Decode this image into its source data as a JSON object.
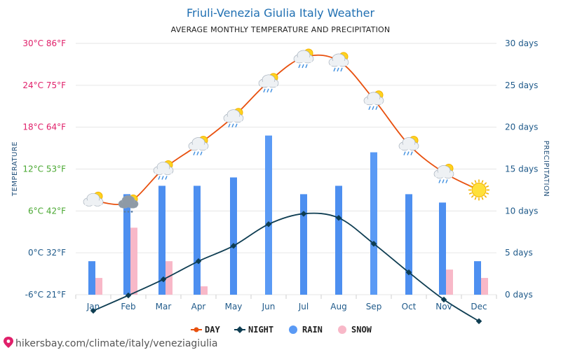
{
  "header": {
    "title": "Friuli-Venezia Giulia Italy Weather",
    "subtitle": "AVERAGE MONTHLY TEMPERATURE AND PRECIPITATION"
  },
  "axes": {
    "left_label": "TEMPERATURE",
    "right_label": "PRECIPITATION",
    "left_ticks": [
      {
        "text": "30°C 86°F",
        "value": 30,
        "color": "#e0206a"
      },
      {
        "text": "24°C 75°F",
        "value": 24,
        "color": "#e0206a"
      },
      {
        "text": "18°C 64°F",
        "value": 18,
        "color": "#e0206a"
      },
      {
        "text": "12°C 53°F",
        "value": 12,
        "color": "#4aa832"
      },
      {
        "text": "6°C 42°F",
        "value": 6,
        "color": "#4aa832"
      },
      {
        "text": "0°C 32°F",
        "value": 0,
        "color": "#1f5a8a"
      },
      {
        "text": "-6°C 21°F",
        "value": -6,
        "color": "#1f5a8a"
      }
    ],
    "right_ticks": [
      {
        "text": "30 days",
        "value": 30
      },
      {
        "text": "25 days",
        "value": 25
      },
      {
        "text": "20 days",
        "value": 20
      },
      {
        "text": "15 days",
        "value": 15
      },
      {
        "text": "10 days",
        "value": 10
      },
      {
        "text": "5 days",
        "value": 5
      },
      {
        "text": "0 days",
        "value": 0
      }
    ]
  },
  "legend": {
    "day": "DAY",
    "night": "NIGHT",
    "rain": "RAIN",
    "snow": "SNOW"
  },
  "footer": {
    "url": "hikersbay.com/climate/italy/veneziagiulia"
  },
  "colors": {
    "day": "#e8500e",
    "night": "#0e3d52",
    "rain": "#4d8ff0",
    "rain_alt": "#5a9af5",
    "snow": "#f8b8c8",
    "grid": "#e6e6e6"
  },
  "chart_data": {
    "type": "line",
    "categories": [
      "Jan",
      "Feb",
      "Mar",
      "Apr",
      "May",
      "Jun",
      "Jul",
      "Aug",
      "Sep",
      "Oct",
      "Nov",
      "Dec"
    ],
    "temp_ylim": [
      -6,
      30
    ],
    "precip_ylim": [
      0,
      30
    ],
    "series": [
      {
        "name": "DAY",
        "axis": "temperature",
        "values": [
          7.5,
          7.2,
          12,
          15.5,
          19.5,
          24.5,
          28,
          27.5,
          22,
          15.5,
          11.5,
          9
        ]
      },
      {
        "name": "NIGHT",
        "axis": "temperature",
        "values": [
          -8.3,
          -6.1,
          -3.8,
          -1.2,
          1.0,
          4.1,
          5.6,
          5.0,
          1.3,
          -2.8,
          -6.7,
          -9.8
        ]
      },
      {
        "name": "RAIN",
        "axis": "precipitation",
        "unit": "days",
        "values": [
          4,
          12,
          13,
          13,
          14,
          19,
          12,
          13,
          17,
          12,
          11,
          4
        ]
      },
      {
        "name": "SNOW",
        "axis": "precipitation",
        "unit": "days",
        "values": [
          2,
          8,
          4,
          1,
          0,
          0,
          0,
          0,
          0,
          0,
          3,
          2
        ]
      }
    ],
    "weather_icons": [
      "partly-cloudy-icon",
      "snow-cloud-icon",
      "partly-cloudy-rain-icon",
      "partly-cloudy-rain-icon",
      "partly-cloudy-rain-icon",
      "partly-cloudy-rain-icon",
      "partly-cloudy-rain-icon",
      "partly-cloudy-rain-icon",
      "partly-cloudy-rain-icon",
      "partly-cloudy-rain-icon",
      "partly-cloudy-rain-icon",
      "sun-icon"
    ],
    "grid": true,
    "legend_position": "bottom-center"
  }
}
